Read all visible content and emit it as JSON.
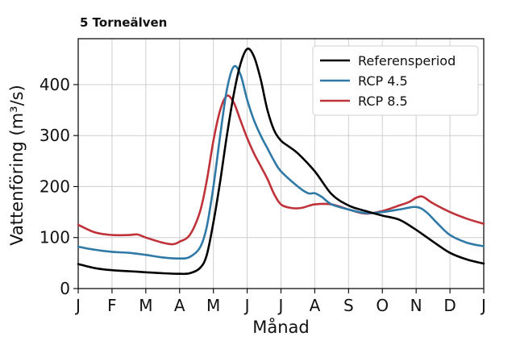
{
  "chart_data": {
    "type": "line",
    "title": "5 Torneälven",
    "xlabel": "Månad",
    "ylabel": "Vattenföring (m³/s)",
    "ylim": [
      0,
      490
    ],
    "yticks": [
      0,
      100,
      200,
      300,
      400
    ],
    "xlim": [
      0,
      12
    ],
    "month_ticks": [
      "J",
      "F",
      "M",
      "A",
      "M",
      "J",
      "J",
      "A",
      "S",
      "O",
      "N",
      "D",
      "J"
    ],
    "grid": true,
    "legend_position": "top-right",
    "series": [
      {
        "name": "Referensperiod",
        "color": "#000000",
        "points": [
          [
            0,
            48
          ],
          [
            0.5,
            40
          ],
          [
            1,
            36
          ],
          [
            1.5,
            34
          ],
          [
            2,
            32
          ],
          [
            2.5,
            30
          ],
          [
            3,
            29
          ],
          [
            3.3,
            30
          ],
          [
            3.6,
            40
          ],
          [
            3.8,
            65
          ],
          [
            4,
            130
          ],
          [
            4.2,
            210
          ],
          [
            4.4,
            300
          ],
          [
            4.6,
            380
          ],
          [
            4.8,
            440
          ],
          [
            5,
            470
          ],
          [
            5.2,
            455
          ],
          [
            5.4,
            410
          ],
          [
            5.6,
            350
          ],
          [
            5.8,
            310
          ],
          [
            6,
            290
          ],
          [
            6.2,
            280
          ],
          [
            6.5,
            265
          ],
          [
            7,
            230
          ],
          [
            7.5,
            185
          ],
          [
            8,
            163
          ],
          [
            8.5,
            152
          ],
          [
            9,
            143
          ],
          [
            9.5,
            135
          ],
          [
            10,
            115
          ],
          [
            10.5,
            92
          ],
          [
            11,
            70
          ],
          [
            11.5,
            57
          ],
          [
            12,
            49
          ]
        ]
      },
      {
        "name": "RCP 4.5",
        "color": "#2e79a6",
        "points": [
          [
            0,
            82
          ],
          [
            0.5,
            76
          ],
          [
            1,
            72
          ],
          [
            1.5,
            70
          ],
          [
            2,
            66
          ],
          [
            2.5,
            61
          ],
          [
            3,
            59
          ],
          [
            3.3,
            62
          ],
          [
            3.6,
            80
          ],
          [
            3.8,
            120
          ],
          [
            4,
            200
          ],
          [
            4.2,
            300
          ],
          [
            4.4,
            390
          ],
          [
            4.6,
            435
          ],
          [
            4.8,
            420
          ],
          [
            5,
            370
          ],
          [
            5.2,
            330
          ],
          [
            5.4,
            300
          ],
          [
            5.6,
            275
          ],
          [
            5.8,
            250
          ],
          [
            6,
            230
          ],
          [
            6.5,
            200
          ],
          [
            6.8,
            187
          ],
          [
            7,
            187
          ],
          [
            7.2,
            180
          ],
          [
            7.5,
            165
          ],
          [
            8,
            155
          ],
          [
            8.5,
            148
          ],
          [
            9,
            150
          ],
          [
            9.5,
            155
          ],
          [
            10,
            160
          ],
          [
            10.3,
            150
          ],
          [
            10.6,
            130
          ],
          [
            11,
            105
          ],
          [
            11.5,
            90
          ],
          [
            12,
            83
          ]
        ]
      },
      {
        "name": "RCP 8.5",
        "color": "#c0323a",
        "points": [
          [
            0,
            125
          ],
          [
            0.5,
            110
          ],
          [
            1,
            105
          ],
          [
            1.5,
            105
          ],
          [
            1.75,
            106
          ],
          [
            2,
            100
          ],
          [
            2.5,
            90
          ],
          [
            2.8,
            87
          ],
          [
            3,
            92
          ],
          [
            3.3,
            105
          ],
          [
            3.6,
            150
          ],
          [
            3.8,
            210
          ],
          [
            4,
            290
          ],
          [
            4.2,
            350
          ],
          [
            4.4,
            378
          ],
          [
            4.6,
            365
          ],
          [
            4.8,
            330
          ],
          [
            5,
            295
          ],
          [
            5.2,
            265
          ],
          [
            5.4,
            240
          ],
          [
            5.6,
            215
          ],
          [
            5.8,
            185
          ],
          [
            6,
            165
          ],
          [
            6.3,
            158
          ],
          [
            6.6,
            158
          ],
          [
            7,
            165
          ],
          [
            7.5,
            165
          ],
          [
            8,
            155
          ],
          [
            8.5,
            147
          ],
          [
            9,
            152
          ],
          [
            9.5,
            163
          ],
          [
            9.8,
            170
          ],
          [
            10,
            178
          ],
          [
            10.2,
            180
          ],
          [
            10.5,
            167
          ],
          [
            11,
            150
          ],
          [
            11.5,
            137
          ],
          [
            12,
            127
          ]
        ]
      }
    ]
  }
}
